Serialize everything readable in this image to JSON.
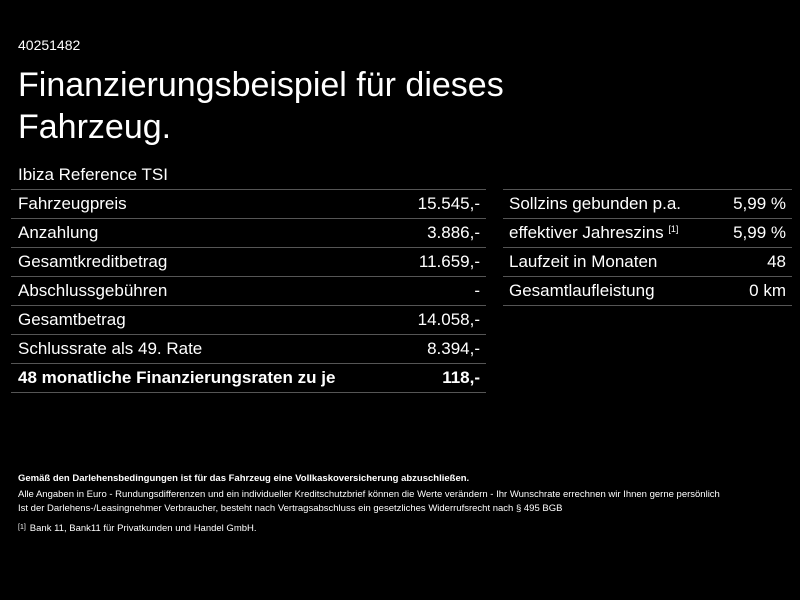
{
  "reference_id": "40251482",
  "title_line1": "Finanzierungsbeispiel für dieses",
  "title_line2": "Fahrzeug.",
  "model": "Ibiza Reference TSI",
  "left_table": [
    {
      "label": "Fahrzeugpreis",
      "value": "15.545,-"
    },
    {
      "label": "Anzahlung",
      "value": "3.886,-"
    },
    {
      "label": "Gesamtkreditbetrag",
      "value": "11.659,-"
    },
    {
      "label": "Abschlussgebühren",
      "value": "-"
    },
    {
      "label": "Gesamtbetrag",
      "value": "14.058,-"
    },
    {
      "label": "Schlussrate als 49. Rate",
      "value": "8.394,-"
    },
    {
      "label": "48 monatliche Finanzierungsraten zu je",
      "value": "118,-"
    }
  ],
  "right_table": [
    {
      "label": "Sollzins gebunden p.a.",
      "value": "5,99 %"
    },
    {
      "label": "effektiver Jahreszins",
      "footnote": "[1]",
      "value": "5,99 %"
    },
    {
      "label": "Laufzeit in Monaten",
      "value": "48"
    },
    {
      "label": "Gesamtlaufleistung",
      "value": "0 km"
    }
  ],
  "notes": {
    "bold_line": "Gemäß den Darlehensbedingungen ist für das Fahrzeug eine Vollkaskoversicherung abzuschließen.",
    "line1": "Alle Angaben in Euro - Rundungsdifferenzen und ein individueller Kreditschutzbrief können die Werte verändern - Ihr Wunschrate errechnen wir Ihnen gerne persönlich",
    "line2": "Ist der Darlehens-/Leasingnehmer Verbraucher, besteht nach Vertragsabschluss ein gesetzliches Widerrufsrecht nach § 495 BGB",
    "footnote_mark": "[1]",
    "footnote_text": "Bank 11, Bank11 für Privatkunden und Handel GmbH."
  },
  "colors": {
    "background": "#000000",
    "text": "#ffffff",
    "divider": "#555555"
  }
}
